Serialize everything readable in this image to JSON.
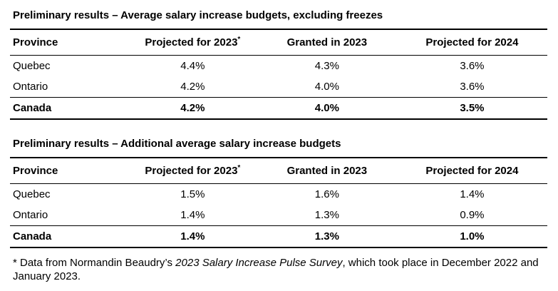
{
  "page": {
    "background": "#ffffff",
    "text_color": "#000000",
    "rule_color": "#000000"
  },
  "tables": [
    {
      "title": "Preliminary results – Average salary increase budgets, excluding freezes",
      "columns": [
        {
          "label": "Province"
        },
        {
          "label": "Projected for 2023",
          "sup": "*"
        },
        {
          "label": "Granted in 2023"
        },
        {
          "label": "Projected for 2024"
        }
      ],
      "rows": [
        {
          "province": "Quebec",
          "values": [
            "4.4%",
            "4.3%",
            "3.6%"
          ]
        },
        {
          "province": "Ontario",
          "values": [
            "4.2%",
            "4.0%",
            "3.6%"
          ]
        },
        {
          "province": "Canada",
          "values": [
            "4.2%",
            "4.0%",
            "3.5%"
          ],
          "emphasis": "bold"
        }
      ]
    },
    {
      "title": "Preliminary results – Additional average salary increase budgets",
      "columns": [
        {
          "label": "Province"
        },
        {
          "label": "Projected for 2023",
          "sup": "*"
        },
        {
          "label": "Granted in 2023"
        },
        {
          "label": "Projected for 2024"
        }
      ],
      "rows": [
        {
          "province": "Quebec",
          "values": [
            "1.5%",
            "1.6%",
            "1.4%"
          ]
        },
        {
          "province": "Ontario",
          "values": [
            "1.4%",
            "1.3%",
            "0.9%"
          ]
        },
        {
          "province": "Canada",
          "values": [
            "1.4%",
            "1.3%",
            "1.0%"
          ],
          "emphasis": "bold"
        }
      ]
    }
  ],
  "footnote": {
    "prefix": "* Data from Normandin Beaudry’s ",
    "italic": "2023 Salary Increase Pulse Survey",
    "suffix": ", which took place in December 2022 and January 2023."
  }
}
